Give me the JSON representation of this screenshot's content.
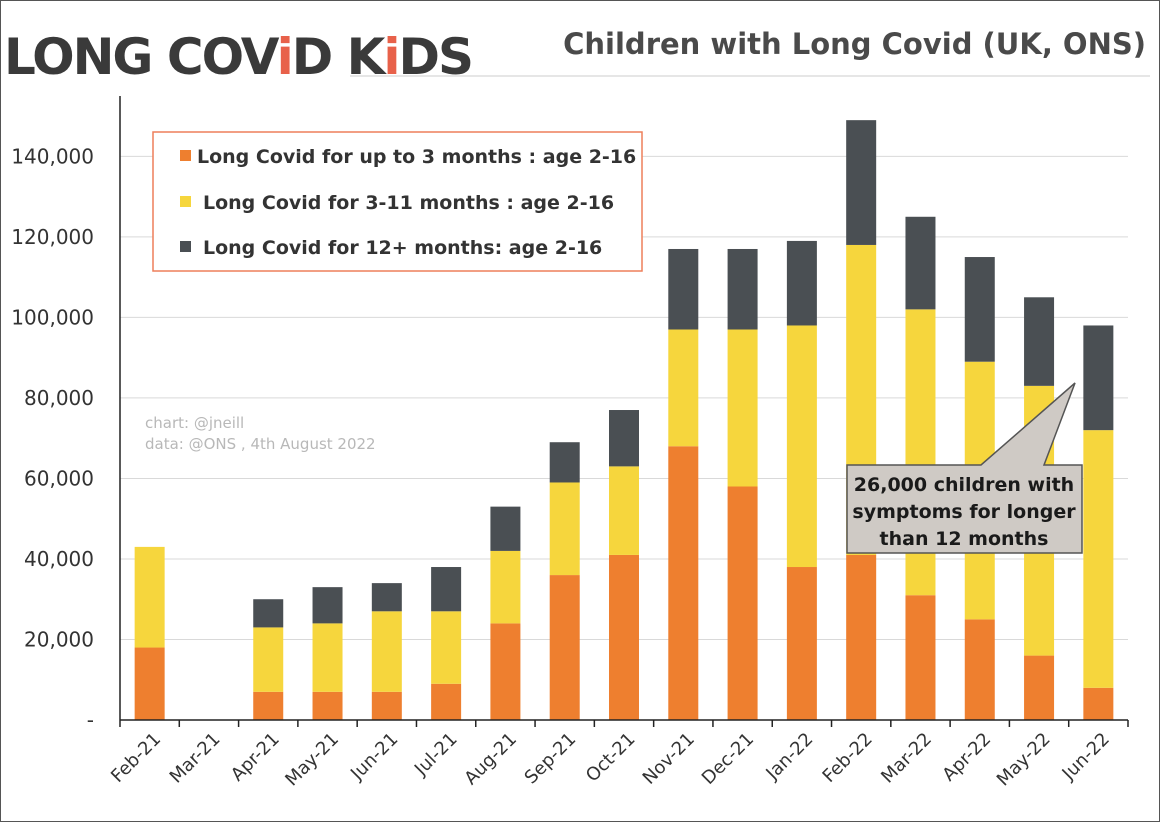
{
  "logo": {
    "parts": [
      "LONG COV",
      "i",
      "D K",
      "i",
      "DS"
    ],
    "text_color": "#3a3a3a",
    "accent_color": "#e8614a"
  },
  "colors": {
    "short": "#ee7f2f",
    "mid": "#f6d63d",
    "long": "#4a4f53",
    "legend_border": "#ee7f5a",
    "callout_fill": "#cfcac5"
  },
  "credits": {
    "line1": "chart: @jneill",
    "line2": "data: @ONS , 4th August 2022"
  },
  "callout": {
    "lines": [
      "26,000 children with",
      "symptoms for longer",
      "than 12 months"
    ]
  },
  "chart_data": {
    "type": "bar",
    "stacked": true,
    "title": "Children with Long Covid (UK, ONS)",
    "categories": [
      "Feb-21",
      "Mar-21",
      "Apr-21",
      "May-21",
      "Jun-21",
      "Jul-21",
      "Aug-21",
      "Sep-21",
      "Oct-21",
      "Nov-21",
      "Dec-21",
      "Jan-22",
      "Feb-22",
      "Mar-22",
      "Apr-22",
      "May-22",
      "Jun-22"
    ],
    "series": [
      {
        "name": "Long Covid for up to 3 months : age 2-16",
        "values": [
          18000,
          0,
          7000,
          7000,
          7000,
          9000,
          24000,
          36000,
          41000,
          68000,
          58000,
          38000,
          41000,
          31000,
          25000,
          16000,
          8000
        ]
      },
      {
        "name": "Long Covid for 3-11 months : age 2-16",
        "values": [
          25000,
          0,
          16000,
          17000,
          20000,
          18000,
          18000,
          23000,
          22000,
          29000,
          39000,
          60000,
          77000,
          71000,
          64000,
          67000,
          64000
        ]
      },
      {
        "name": "Long Covid for 12+ months: age 2-16",
        "values": [
          0,
          0,
          7000,
          9000,
          7000,
          11000,
          11000,
          10000,
          14000,
          20000,
          20000,
          21000,
          31000,
          23000,
          26000,
          22000,
          26000
        ]
      }
    ],
    "ylim": [
      0,
      155000
    ],
    "yticks": [
      0,
      20000,
      40000,
      60000,
      80000,
      100000,
      120000,
      140000
    ],
    "ytick_labels": [
      "-",
      "20,000",
      "40,000",
      "60,000",
      "80,000",
      "100,000",
      "120,000",
      "140,000"
    ],
    "grid": true,
    "legend_position": "top-left"
  }
}
